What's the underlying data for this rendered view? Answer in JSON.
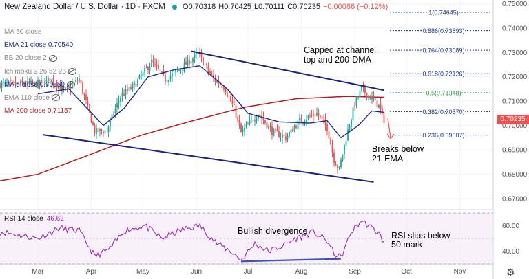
{
  "header": {
    "title": "New Zealand Dollar / U.S. Dollar · 1D · FXCM",
    "ohlc": [
      {
        "k": "O",
        "v": "0.70318"
      },
      {
        "k": "H",
        "v": "0.70425"
      },
      {
        "k": "L",
        "v": "0.70111"
      },
      {
        "k": "C",
        "v": "0.70235"
      }
    ],
    "change": "−0.00086 (−0.12%)"
  },
  "legend": [
    {
      "label": "MA 50 close",
      "value": "",
      "color": "#8a8a8a",
      "eye": false
    },
    {
      "label": "EMA 21 close",
      "value": "0.70540",
      "color": "#1a2a8c",
      "eye": false
    },
    {
      "label": "BB 20 close 2",
      "value": "",
      "color": "#8a8a8a",
      "eye": true
    },
    {
      "label": "Ichimoku 9 26 52 26",
      "value": "",
      "color": "#8a8a8a",
      "eye": true
    },
    {
      "label": "MA 5 close",
      "value": "0.70650",
      "color": "#1a2a8c",
      "eye": true
    },
    {
      "label": "EMA 110 close",
      "value": "",
      "color": "#8a8a8a",
      "eye": true
    },
    {
      "label": "MA 200 close",
      "value": "0.71157",
      "color": "#b22222",
      "eye": false
    }
  ],
  "price_label": "0.70235",
  "rsi_label": {
    "name": "RSI 14 close",
    "value": "46.62"
  },
  "annotations": {
    "channel": [
      "Capped at channel",
      "top and 200-DMA"
    ],
    "ema": [
      "Breaks below",
      "21-EMA"
    ],
    "divergence": "Bullish divergence",
    "rsi": [
      "RSI slips below",
      "50 mark"
    ]
  },
  "colors": {
    "up": "#26a69a",
    "down": "#ef5350",
    "channel": "#1a237e",
    "ema21": "#1a2a8c",
    "ma200": "#b71c1c",
    "rsi": "#9c27b0",
    "fib": "#1e3a8a",
    "fib_05": "#2e9c4a",
    "divergence": "#3f51b5"
  },
  "chart_data": {
    "type": "candlestick",
    "y_axis": {
      "ylim": [
        0.6655,
        0.7515
      ],
      "ticks": [
        "0.75000",
        "0.74000",
        "0.73000",
        "0.72000",
        "0.71000",
        "0.70000",
        "0.69000",
        "0.68000",
        "0.67000"
      ],
      "tick_values": [
        0.75,
        0.74,
        0.73,
        0.72,
        0.71,
        0.7,
        0.69,
        0.68,
        0.67
      ]
    },
    "x_axis": {
      "ticks": [
        "Mar",
        "Apr",
        "May",
        "Jun",
        "Jul",
        "Aug",
        "Sep",
        "Oct",
        "Nov"
      ],
      "tick_days": [
        0,
        31,
        61,
        92,
        122,
        153,
        184,
        214,
        245
      ]
    },
    "fib_levels": [
      {
        "label": "1(0.74645)",
        "value": 0.74645
      },
      {
        "label": "0.886(0.73893)",
        "value": 0.73893
      },
      {
        "label": "0.764(0.73089)",
        "value": 0.73089
      },
      {
        "label": "0.618(0.72126)",
        "value": 0.72126
      },
      {
        "label": "0.5(0.71348)",
        "value": 0.71348
      },
      {
        "label": "0.382(0.70570)",
        "value": 0.7057
      },
      {
        "label": "0.236(0.69607)",
        "value": 0.69607
      }
    ],
    "trendlines": [
      {
        "name": "channel-top",
        "from": {
          "day": 89,
          "price": 0.7305
        },
        "to": {
          "day": 201,
          "price": 0.7145
        }
      },
      {
        "name": "channel-bottom",
        "from": {
          "day": 3,
          "price": 0.6962
        },
        "to": {
          "day": 195,
          "price": 0.6768
        }
      }
    ],
    "close_anchors": [
      {
        "day": 0,
        "price": 0.717
      },
      {
        "day": 8,
        "price": 0.7185
      },
      {
        "day": 16,
        "price": 0.714
      },
      {
        "day": 24,
        "price": 0.719
      },
      {
        "day": 33,
        "price": 0.6975
      },
      {
        "day": 40,
        "price": 0.698
      },
      {
        "day": 48,
        "price": 0.712
      },
      {
        "day": 56,
        "price": 0.7165
      },
      {
        "day": 66,
        "price": 0.726
      },
      {
        "day": 74,
        "price": 0.719
      },
      {
        "day": 84,
        "price": 0.724
      },
      {
        "day": 93,
        "price": 0.7295
      },
      {
        "day": 102,
        "price": 0.719
      },
      {
        "day": 108,
        "price": 0.716
      },
      {
        "day": 114,
        "price": 0.707
      },
      {
        "day": 118,
        "price": 0.697
      },
      {
        "day": 128,
        "price": 0.705
      },
      {
        "day": 136,
        "price": 0.6975
      },
      {
        "day": 144,
        "price": 0.695
      },
      {
        "day": 152,
        "price": 0.702
      },
      {
        "day": 162,
        "price": 0.705
      },
      {
        "day": 168,
        "price": 0.699
      },
      {
        "day": 172,
        "price": 0.686
      },
      {
        "day": 175,
        "price": 0.682
      },
      {
        "day": 179,
        "price": 0.695
      },
      {
        "day": 184,
        "price": 0.709
      },
      {
        "day": 188,
        "price": 0.715
      },
      {
        "day": 194,
        "price": 0.711
      },
      {
        "day": 198,
        "price": 0.708
      },
      {
        "day": 201,
        "price": 0.70235
      }
    ],
    "ema21_anchors": [
      {
        "day": 0,
        "price": 0.713
      },
      {
        "day": 18,
        "price": 0.715
      },
      {
        "day": 30,
        "price": 0.706
      },
      {
        "day": 38,
        "price": 0.7
      },
      {
        "day": 50,
        "price": 0.707
      },
      {
        "day": 64,
        "price": 0.72
      },
      {
        "day": 80,
        "price": 0.723
      },
      {
        "day": 94,
        "price": 0.7245
      },
      {
        "day": 110,
        "price": 0.715
      },
      {
        "day": 122,
        "price": 0.705
      },
      {
        "day": 140,
        "price": 0.7015
      },
      {
        "day": 158,
        "price": 0.701
      },
      {
        "day": 168,
        "price": 0.702
      },
      {
        "day": 176,
        "price": 0.695
      },
      {
        "day": 186,
        "price": 0.7
      },
      {
        "day": 194,
        "price": 0.706
      },
      {
        "day": 201,
        "price": 0.7054
      }
    ],
    "ma200_anchors": [
      {
        "day": -65,
        "price": 0.672
      },
      {
        "day": 0,
        "price": 0.68
      },
      {
        "day": 30,
        "price": 0.688
      },
      {
        "day": 60,
        "price": 0.696
      },
      {
        "day": 90,
        "price": 0.702
      },
      {
        "day": 120,
        "price": 0.7075
      },
      {
        "day": 150,
        "price": 0.711
      },
      {
        "day": 180,
        "price": 0.712
      },
      {
        "day": 201,
        "price": 0.7116
      }
    ],
    "rsi": {
      "ylim": [
        30,
        70
      ],
      "ticks": [
        "60.00",
        "40.00"
      ],
      "tick_values": [
        60,
        40
      ],
      "anchors": [
        {
          "day": -65,
          "value": 52
        },
        {
          "day": -20,
          "value": 55
        },
        {
          "day": 0,
          "value": 50
        },
        {
          "day": 12,
          "value": 58
        },
        {
          "day": 24,
          "value": 56
        },
        {
          "day": 33,
          "value": 36
        },
        {
          "day": 42,
          "value": 42
        },
        {
          "day": 50,
          "value": 56
        },
        {
          "day": 62,
          "value": 60
        },
        {
          "day": 72,
          "value": 50
        },
        {
          "day": 84,
          "value": 57
        },
        {
          "day": 94,
          "value": 60
        },
        {
          "day": 104,
          "value": 46
        },
        {
          "day": 112,
          "value": 40
        },
        {
          "day": 118,
          "value": 33
        },
        {
          "day": 126,
          "value": 46
        },
        {
          "day": 134,
          "value": 40
        },
        {
          "day": 142,
          "value": 44
        },
        {
          "day": 150,
          "value": 50
        },
        {
          "day": 160,
          "value": 55
        },
        {
          "day": 168,
          "value": 48
        },
        {
          "day": 172,
          "value": 38
        },
        {
          "day": 176,
          "value": 35
        },
        {
          "day": 182,
          "value": 55
        },
        {
          "day": 188,
          "value": 64
        },
        {
          "day": 194,
          "value": 58
        },
        {
          "day": 198,
          "value": 54
        },
        {
          "day": 201,
          "value": 46.62
        }
      ],
      "divergence_line": {
        "from": {
          "day": 118,
          "value": 32
        },
        "to": {
          "day": 176,
          "value": 34
        }
      }
    }
  }
}
